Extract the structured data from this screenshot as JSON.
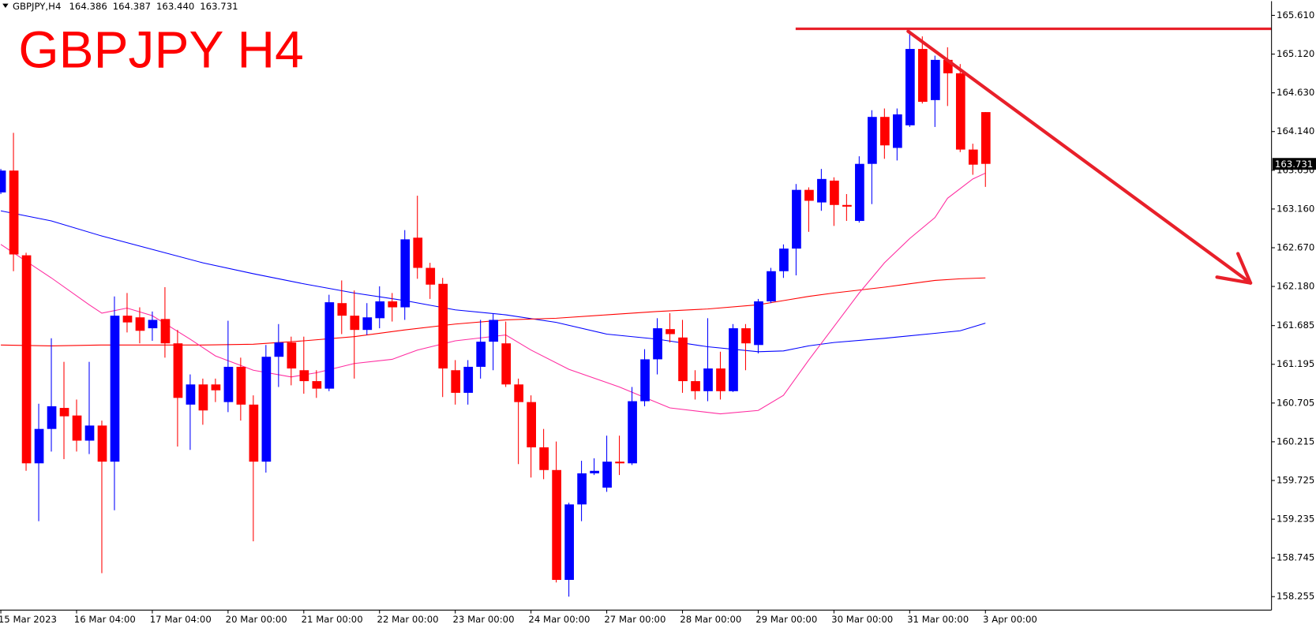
{
  "header": {
    "symbol": "GBPJPY,H4",
    "ohlc": [
      "164.386",
      "164.387",
      "163.440",
      "163.731"
    ]
  },
  "chart_data": {
    "type": "candlestick",
    "title": "GBPJPY H4",
    "categories": [
      "15 Mar 2023",
      null,
      null,
      null,
      null,
      null,
      "16 Mar 04:00",
      null,
      null,
      null,
      null,
      null,
      "17 Mar 04:00",
      null,
      null,
      null,
      null,
      null,
      "20 Mar 00:00",
      null,
      null,
      null,
      null,
      null,
      "21 Mar 00:00",
      null,
      null,
      null,
      null,
      null,
      "22 Mar 00:00",
      null,
      null,
      null,
      null,
      null,
      "23 Mar 00:00",
      null,
      null,
      null,
      null,
      null,
      "24 Mar 00:00",
      null,
      null,
      null,
      null,
      null,
      "27 Mar 00:00",
      null,
      null,
      null,
      null,
      null,
      "28 Mar 00:00",
      null,
      null,
      null,
      null,
      null,
      "29 Mar 00:00",
      null,
      null,
      null,
      null,
      null,
      "30 Mar 00:00",
      null,
      null,
      null,
      null,
      null,
      "31 Mar 00:00",
      null,
      null,
      null,
      null,
      null,
      "3 Apr 00:00"
    ],
    "open": [
      163.37,
      163.646,
      162.574,
      159.942,
      160.377,
      160.643,
      160.547,
      160.229,
      160.42,
      159.963,
      161.81,
      161.789,
      161.651,
      161.768,
      161.46,
      160.685,
      160.94,
      160.94,
      160.717,
      161.163,
      160.685,
      159.963,
      161.29,
      161.471,
      161.12,
      160.982,
      160.887,
      161.969,
      161.81,
      161.63,
      161.778,
      161.991,
      161.916,
      162.797,
      162.415,
      162.213,
      161.12,
      160.834,
      161.163,
      161.481,
      161.46,
      160.94,
      160.717,
      160.144,
      159.857,
      158.467,
      159.422,
      159.815,
      159.634,
      159.963,
      159.942,
      160.728,
      161.258,
      161.64,
      161.534,
      160.982,
      160.855,
      161.142,
      160.855,
      161.651,
      161.439,
      161.991,
      162.373,
      162.659,
      163.402,
      163.243,
      163.519,
      163.211,
      163.009,
      163.731,
      164.325,
      163.933,
      164.219,
      165.185,
      164.538,
      165.047,
      164.877,
      163.912,
      164.386
    ],
    "high": [
      163.667,
      164.124,
      162.606,
      160.696,
      161.524,
      161.226,
      160.749,
      161.226,
      160.483,
      162.054,
      162.097,
      161.916,
      161.863,
      162.171,
      161.63,
      161.067,
      161.014,
      161.014,
      161.746,
      161.279,
      160.802,
      161.439,
      161.704,
      161.545,
      161.545,
      161.12,
      162.075,
      162.256,
      162.129,
      161.969,
      162.182,
      162.097,
      162.893,
      163.328,
      162.479,
      162.288,
      161.248,
      161.248,
      161.757,
      161.831,
      161.736,
      161.014,
      160.802,
      160.377,
      160.218,
      159.443,
      159.974,
      160.006,
      160.292,
      160.292,
      160.908,
      161.386,
      161.778,
      161.842,
      161.757,
      161.12,
      161.778,
      161.354,
      161.704,
      161.704,
      162.022,
      162.415,
      162.712,
      163.476,
      163.434,
      163.667,
      163.561,
      163.349,
      163.827,
      164.41,
      164.432,
      164.432,
      165.419,
      165.344,
      165.1,
      165.206,
      164.994,
      163.986,
      164.387
    ],
    "low": [
      163.349,
      162.373,
      159.847,
      159.21,
      160.091,
      159.995,
      160.091,
      160.059,
      158.552,
      159.348,
      161.598,
      161.46,
      161.492,
      161.279,
      160.154,
      160.112,
      160.43,
      160.717,
      160.59,
      160.483,
      158.955,
      159.825,
      160.908,
      160.929,
      160.823,
      160.77,
      160.855,
      161.577,
      161.014,
      161.566,
      161.651,
      161.736,
      161.757,
      162.277,
      162.022,
      160.781,
      160.685,
      160.685,
      161.014,
      161.12,
      160.908,
      159.932,
      159.762,
      159.741,
      158.435,
      158.255,
      159.21,
      159.794,
      159.581,
      159.794,
      159.921,
      160.664,
      161.067,
      161.471,
      160.834,
      160.749,
      160.728,
      160.749,
      160.845,
      161.12,
      161.333,
      161.969,
      162.288,
      162.32,
      162.871,
      163.137,
      162.946,
      163.009,
      162.988,
      163.222,
      163.795,
      163.774,
      164.198,
      164.495,
      164.198,
      164.463,
      163.88,
      163.593,
      163.44
    ],
    "close": [
      163.646,
      162.585,
      159.942,
      160.377,
      160.664,
      160.537,
      160.229,
      160.42,
      159.963,
      161.81,
      161.725,
      161.619,
      161.757,
      161.46,
      160.77,
      160.94,
      160.611,
      160.866,
      161.163,
      160.685,
      159.963,
      161.29,
      161.471,
      161.142,
      160.982,
      160.887,
      161.98,
      161.81,
      161.63,
      161.789,
      161.991,
      161.916,
      162.776,
      162.415,
      162.203,
      161.142,
      160.834,
      161.163,
      161.481,
      161.757,
      160.94,
      160.717,
      160.144,
      159.857,
      158.467,
      159.422,
      159.815,
      159.847,
      159.963,
      159.942,
      160.728,
      161.258,
      161.651,
      161.577,
      160.982,
      160.855,
      161.142,
      160.855,
      161.651,
      161.46,
      161.991,
      162.373,
      162.659,
      163.402,
      163.264,
      163.54,
      163.211,
      163.19,
      163.731,
      164.325,
      163.965,
      164.357,
      165.185,
      164.516,
      165.047,
      164.877,
      163.912,
      163.721,
      163.731
    ],
    "up_color": "#0000ff",
    "down_color": "#ff0000",
    "series": [
      {
        "color": "#0000ff",
        "x": [
          0,
          4,
          8,
          12,
          16,
          20,
          24,
          28,
          32,
          36,
          40,
          44,
          48,
          52,
          56,
          60,
          62,
          64,
          66,
          70,
          74,
          76,
          78
        ],
        "values": [
          163.137,
          163.009,
          162.818,
          162.649,
          162.479,
          162.341,
          162.213,
          162.097,
          162.001,
          161.884,
          161.821,
          161.725,
          161.577,
          161.513,
          161.417,
          161.354,
          161.364,
          161.428,
          161.471,
          161.524,
          161.587,
          161.619,
          161.715
        ]
      },
      {
        "color": "#ff0000",
        "x": [
          0,
          4,
          8,
          12,
          16,
          20,
          24,
          28,
          32,
          36,
          40,
          44,
          48,
          52,
          56,
          60,
          62,
          64,
          66,
          70,
          74,
          76,
          78
        ],
        "values": [
          161.439,
          161.428,
          161.439,
          161.439,
          161.439,
          161.449,
          161.492,
          161.545,
          161.63,
          161.704,
          161.757,
          161.778,
          161.821,
          161.863,
          161.895,
          161.948,
          162.001,
          162.054,
          162.097,
          162.171,
          162.256,
          162.277,
          162.288
        ]
      },
      {
        "color": "#ff2ca0",
        "x": [
          0,
          2,
          4,
          7,
          8,
          10,
          12,
          15,
          17,
          20,
          23,
          25,
          28,
          31,
          33,
          36,
          40,
          42,
          45,
          49,
          53,
          57,
          60,
          62,
          64,
          66,
          68,
          70,
          72,
          74,
          75,
          77,
          78
        ],
        "values": [
          162.712,
          162.5,
          162.288,
          161.948,
          161.842,
          161.906,
          161.81,
          161.513,
          161.301,
          161.12,
          161.035,
          161.088,
          161.205,
          161.258,
          161.375,
          161.492,
          161.566,
          161.375,
          161.131,
          160.908,
          160.643,
          160.568,
          160.611,
          160.802,
          161.248,
          161.672,
          162.097,
          162.479,
          162.786,
          163.052,
          163.296,
          163.54,
          163.614
        ]
      }
    ],
    "resistance": 165.44,
    "annotation_color": "#e8202a",
    "ylim": [
      158.085,
      165.79
    ],
    "yticks": [
      {
        "value": 165.61,
        "label": "165.610"
      },
      {
        "value": 165.12,
        "label": "165.120"
      },
      {
        "value": 164.63,
        "label": "164.630"
      },
      {
        "value": 164.14,
        "label": "164.140"
      },
      {
        "value": 163.65,
        "label": "163.650"
      },
      {
        "value": 163.16,
        "label": "163.160"
      },
      {
        "value": 162.67,
        "label": "162.670"
      },
      {
        "value": 162.18,
        "label": "162.180"
      },
      161.685,
      161.195,
      160.705,
      160.215,
      159.725,
      159.235,
      158.745,
      158.255
    ]
  }
}
